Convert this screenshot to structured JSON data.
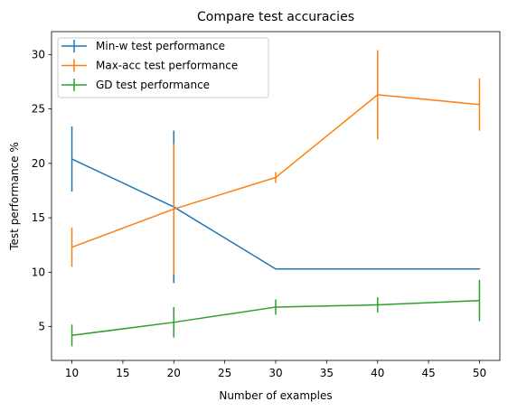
{
  "chart_data": {
    "type": "line",
    "title": "Compare test accuracies",
    "xlabel": "Number of examples",
    "ylabel": "Test performance %",
    "xlim": [
      8,
      52
    ],
    "ylim": [
      1.9,
      32.1
    ],
    "xticks": [
      10,
      15,
      20,
      25,
      30,
      35,
      40,
      45,
      50
    ],
    "yticks": [
      5,
      10,
      15,
      20,
      25,
      30
    ],
    "x": [
      10,
      20,
      30,
      40,
      50
    ],
    "grid": false,
    "legend_position": "upper-left",
    "series": [
      {
        "name": "Min-w test performance",
        "color": "#1f77b4",
        "values": [
          20.4,
          16.0,
          10.3,
          10.3,
          10.3
        ],
        "errors": [
          3.0,
          7.0,
          0.05,
          0.05,
          0.05
        ]
      },
      {
        "name": "Max-acc test performance",
        "color": "#ff7f0e",
        "values": [
          12.3,
          15.8,
          18.7,
          26.3,
          25.4
        ],
        "errors": [
          1.8,
          6.0,
          0.5,
          4.1,
          2.4
        ]
      },
      {
        "name": "GD test performance",
        "color": "#2ca02c",
        "values": [
          4.2,
          5.4,
          6.8,
          7.0,
          7.4
        ],
        "errors": [
          1.0,
          1.4,
          0.7,
          0.7,
          1.9
        ]
      }
    ]
  }
}
